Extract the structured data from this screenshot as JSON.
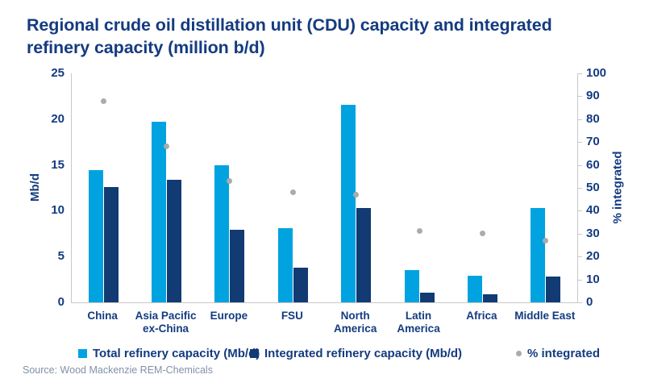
{
  "header": {
    "title_line1": "Regional crude oil distillation unit (CDU) capacity and integrated",
    "title_line2": "refinery capacity (million b/d)"
  },
  "colors": {
    "navy_text": "#143B80",
    "bar_total_blue": "#00A3E0",
    "bar_integrated_navy": "#123A73",
    "dot_grey": "#ABABAB",
    "axis_grey": "#C9C9C9",
    "source_grey": "#8191A8"
  },
  "chart_data": {
    "type": "bar",
    "title": "Regional crude oil distillation unit (CDU) capacity and integrated refinery capacity (million b/d)",
    "categories": [
      "China",
      "Asia Pacific ex-China",
      "Europe",
      "FSU",
      "North America",
      "Latin America",
      "Africa",
      "Middle East"
    ],
    "category_label_lines": [
      [
        "China"
      ],
      [
        "Asia Pacific",
        "ex-China"
      ],
      [
        "Europe"
      ],
      [
        "FSU"
      ],
      [
        "North",
        "America"
      ],
      [
        "Latin",
        "America"
      ],
      [
        "Africa"
      ],
      [
        "Middle East"
      ]
    ],
    "series": [
      {
        "name": "Total refinery capacity (Mb/d)",
        "type": "bar",
        "axis": "left",
        "color": "#00A3E0",
        "values": [
          14.4,
          19.7,
          15.0,
          8.1,
          21.6,
          3.5,
          2.9,
          10.3
        ]
      },
      {
        "name": "Integrated refinery capacity (Mb/d)",
        "type": "bar",
        "axis": "left",
        "color": "#123A73",
        "values": [
          12.6,
          13.4,
          7.9,
          3.8,
          10.3,
          1.1,
          0.9,
          2.8
        ]
      },
      {
        "name": "% integrated",
        "type": "scatter",
        "axis": "right",
        "color": "#ABABAB",
        "values": [
          88,
          68,
          53,
          48,
          47,
          31,
          30,
          27
        ]
      }
    ],
    "ylabel": "Mb/d",
    "y2label": "% integrated",
    "ylim": [
      0,
      25
    ],
    "ytick_step": 5,
    "y2lim": [
      0,
      100
    ],
    "y2tick_step": 10,
    "grid": false,
    "legend_position": "bottom"
  },
  "source": "Source: Wood Mackenzie REM-Chemicals"
}
